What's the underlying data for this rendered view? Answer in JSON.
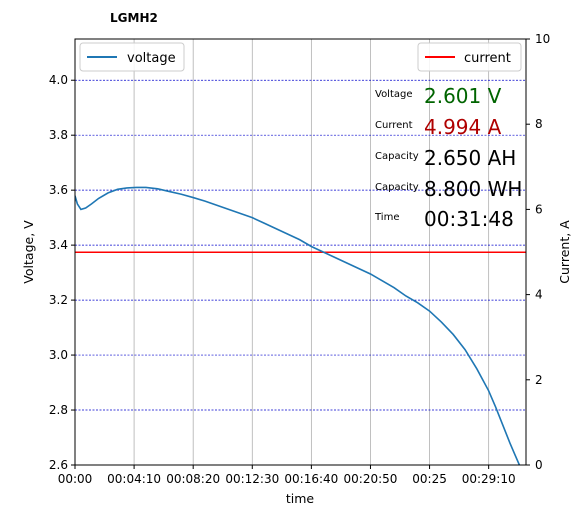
{
  "chart_data": {
    "type": "line",
    "title": "LGMH2",
    "xlabel": "time",
    "ylabel": "Voltage, V",
    "y2label": "Current, A",
    "x_tick_labels": [
      "00:00",
      "00:04:10",
      "00:08:20",
      "00:12:30",
      "00:16:40",
      "00:20:50",
      "00:25",
      "00:29:10"
    ],
    "x_tick_seconds": [
      0,
      250,
      500,
      750,
      1000,
      1250,
      1500,
      1750
    ],
    "xlim_seconds": [
      0,
      1908
    ],
    "ylim": [
      2.6,
      4.15
    ],
    "y_ticks": [
      2.6,
      2.8,
      3.0,
      3.2,
      3.4,
      3.6,
      3.8,
      4.0
    ],
    "y2lim": [
      0,
      10
    ],
    "y2_ticks": [
      0,
      2,
      4,
      6,
      8,
      10
    ],
    "grid": true,
    "legend_left": "top-left",
    "legend_right": "top-right",
    "series": [
      {
        "name": "voltage",
        "axis": "left",
        "color": "#1f77b4",
        "x_seconds": [
          0,
          10,
          25,
          45,
          70,
          100,
          140,
          180,
          220,
          260,
          300,
          350,
          400,
          450,
          500,
          550,
          600,
          650,
          700,
          750,
          800,
          850,
          900,
          950,
          1000,
          1050,
          1100,
          1150,
          1200,
          1250,
          1300,
          1350,
          1400,
          1450,
          1500,
          1550,
          1600,
          1650,
          1700,
          1750,
          1780,
          1810,
          1840,
          1860,
          1880,
          1895,
          1908
        ],
        "values": [
          3.58,
          3.55,
          3.53,
          3.535,
          3.55,
          3.57,
          3.59,
          3.603,
          3.608,
          3.61,
          3.61,
          3.605,
          3.595,
          3.585,
          3.573,
          3.56,
          3.545,
          3.53,
          3.515,
          3.5,
          3.48,
          3.46,
          3.44,
          3.42,
          3.395,
          3.375,
          3.355,
          3.335,
          3.315,
          3.295,
          3.27,
          3.245,
          3.215,
          3.19,
          3.16,
          3.12,
          3.075,
          3.02,
          2.95,
          2.87,
          2.81,
          2.745,
          2.68,
          2.64,
          2.6,
          2.58,
          2.55
        ]
      },
      {
        "name": "current",
        "axis": "right",
        "color": "#ff0000",
        "x_seconds": [
          0,
          1908
        ],
        "values": [
          4.994,
          4.994
        ]
      }
    ]
  },
  "stats": [
    {
      "label": "Voltage",
      "value": "2.601 V",
      "color": "#006400"
    },
    {
      "label": "Current",
      "value": "4.994 A",
      "color": "#b00000"
    },
    {
      "label": "Capacity",
      "value": "2.650 AH",
      "color": "#000000"
    },
    {
      "label": "Capacity",
      "value": "8.800 WH",
      "color": "#000000"
    },
    {
      "label": "Time",
      "value": "00:31:48",
      "color": "#000000"
    }
  ]
}
